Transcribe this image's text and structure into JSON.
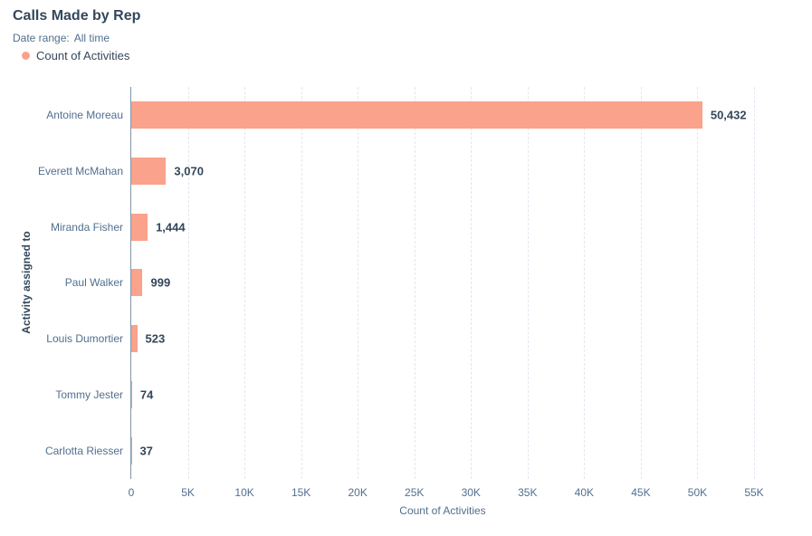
{
  "header": {
    "title": "Calls Made by Rep",
    "date_range_label": "Date range:",
    "date_range_value": "All time"
  },
  "legend": {
    "items": [
      {
        "label": "Count of Activities",
        "color": "#faa28b"
      }
    ]
  },
  "chart_data": {
    "type": "bar",
    "orientation": "horizontal",
    "title": "Calls Made by Rep",
    "xlabel": "Count of Activities",
    "ylabel": "Activity assigned to",
    "categories": [
      "Antoine Moreau",
      "Everett McMahan",
      "Miranda Fisher",
      "Paul Walker",
      "Louis Dumortier",
      "Tommy Jester",
      "Carlotta Riesser"
    ],
    "series": [
      {
        "name": "Count of Activities",
        "values": [
          50432,
          3070,
          1444,
          999,
          523,
          74,
          37
        ],
        "labels": [
          "50,432",
          "3,070",
          "1,444",
          "999",
          "523",
          "74",
          "37"
        ],
        "color": "#faa28b"
      }
    ],
    "xlim": [
      0,
      55000
    ],
    "x_tick_values": [
      0,
      5000,
      10000,
      15000,
      20000,
      25000,
      30000,
      35000,
      40000,
      45000,
      50000,
      55000
    ],
    "x_tick_labels": [
      "0",
      "5K",
      "10K",
      "15K",
      "20K",
      "25K",
      "30K",
      "35K",
      "40K",
      "45K",
      "50K",
      "55K"
    ],
    "grid": "vertical-dashed",
    "legend_position": "top-left"
  },
  "colors": {
    "background": "#ffffff",
    "bar": "#faa28b",
    "title_text": "#33475b",
    "secondary_text": "#516f90",
    "value_label_text": "#33475b",
    "axis_line": "#7f95aa",
    "gridline": "#e1e8f1"
  }
}
